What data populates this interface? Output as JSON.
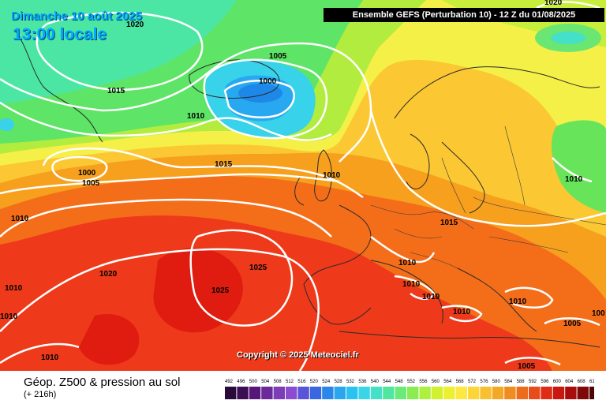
{
  "header": {
    "date": "Dimanche 10 août 2025",
    "time": "13:00 locale",
    "run": "Ensemble GEFS  (Perturbation 10)  -  12 Z du 01/08/2025"
  },
  "copyright": "Copyright © 2025 Meteociel.fr",
  "footer": {
    "title": "Géop. Z500 & pression au sol",
    "lead": "(+ 216h)"
  },
  "legend": {
    "ticks": [
      "492",
      "496",
      "500",
      "504",
      "508",
      "512",
      "516",
      "520",
      "524",
      "528",
      "532",
      "536",
      "540",
      "544",
      "548",
      "552",
      "556",
      "560",
      "564",
      "568",
      "572",
      "576",
      "580",
      "584",
      "588",
      "592",
      "596",
      "600",
      "604",
      "608",
      "612"
    ],
    "colors": [
      "#2a0a3a",
      "#3c0f55",
      "#561878",
      "#6a2a9a",
      "#7d3db8",
      "#8a4dd0",
      "#5a55d8",
      "#3a66e0",
      "#2a86e8",
      "#2aa6ee",
      "#2ac2f0",
      "#3ad6e8",
      "#44e0c8",
      "#50e6a0",
      "#6aea78",
      "#8aec50",
      "#aef040",
      "#d0f030",
      "#ecf030",
      "#fce840",
      "#fcd638",
      "#f8c030",
      "#f4a828",
      "#f08c20",
      "#ec6c1c",
      "#e84c18",
      "#e02c14",
      "#c81810",
      "#a80c0c",
      "#800808",
      "#500404"
    ]
  },
  "isobars": [
    {
      "value": "1020"
    },
    {
      "value": "1015"
    },
    {
      "value": "1010"
    },
    {
      "value": "1005"
    },
    {
      "value": "1000"
    },
    {
      "value": "1010"
    },
    {
      "value": "1015"
    },
    {
      "value": "1000"
    },
    {
      "value": "1005"
    },
    {
      "value": "1010"
    },
    {
      "value": "1010"
    },
    {
      "value": "1020"
    },
    {
      "value": "1025"
    },
    {
      "value": "1025"
    },
    {
      "value": "1010"
    },
    {
      "value": "1010"
    },
    {
      "value": "1020"
    },
    {
      "value": "1015"
    },
    {
      "value": "1010"
    },
    {
      "value": "1010"
    },
    {
      "value": "1010"
    },
    {
      "value": "1010"
    },
    {
      "value": "1010"
    },
    {
      "value": "1010"
    },
    {
      "value": "1005"
    },
    {
      "value": "1005"
    },
    {
      "value": "1010"
    },
    {
      "value": "1020"
    },
    {
      "value": "100"
    }
  ]
}
